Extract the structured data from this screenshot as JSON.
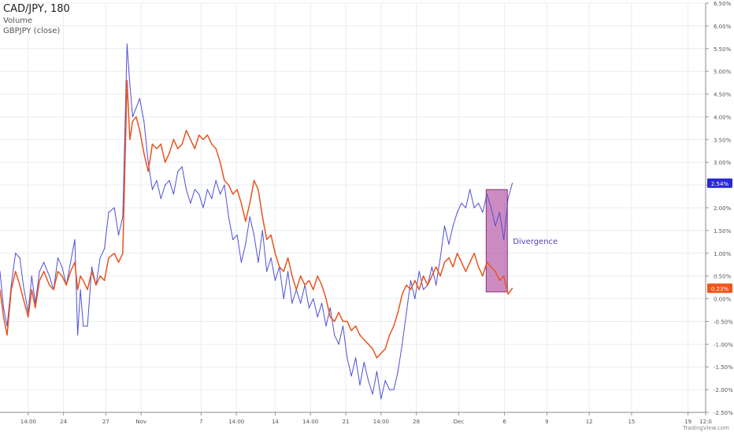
{
  "legend": {
    "title": "CAD/JPY, 180",
    "volume_label": "Volume",
    "compare_label": "GBPJPY (close)"
  },
  "watermark": "TradingView.com",
  "colors": {
    "cadjpy": "#4f4fd6",
    "gbpjpy": "#e8541e",
    "grid": "#e9ecf0",
    "highlight_fill": "#b24fa0",
    "highlight_stroke": "#8a2d7a",
    "axis_text": "#555555",
    "cadjpy_badge": "#2929d6",
    "gbpjpy_badge": "#f0561a"
  },
  "chart_data": {
    "type": "line",
    "y_unit": "%",
    "ylim": [
      -2.5,
      6.5
    ],
    "y_ticks": [
      "6.50%",
      "6.00%",
      "5.50%",
      "5.00%",
      "4.50%",
      "4.00%",
      "3.50%",
      "3.00%",
      "2.50%",
      "2.00%",
      "1.50%",
      "1.00%",
      "0.50%",
      "0.00%",
      "-0.50%",
      "-1.00%",
      "-1.50%",
      "-2.00%",
      "-2.50%"
    ],
    "x_tick_labels": [
      "14:00",
      "24",
      "27",
      "Nov",
      "7",
      "14:00",
      "14",
      "14:00",
      "21",
      "14:00",
      "28",
      "Dec",
      "6",
      "9",
      "12",
      "15",
      "19",
      "12:0"
    ],
    "x_range": [
      0,
      100
    ],
    "x_ticks": [
      4,
      9,
      15,
      20,
      28.5,
      33.5,
      39,
      44,
      49,
      54,
      59,
      65,
      71.5,
      77.5,
      83.5,
      89.5,
      97.5,
      100
    ],
    "grid": true,
    "legend_placement": "top-left",
    "series": [
      {
        "name": "GBPJPY (close)",
        "color": "#4f4fd6",
        "last_value_label": "2.54%",
        "points": [
          [
            0,
            0.6
          ],
          [
            0.5,
            -0.2
          ],
          [
            1,
            -0.6
          ],
          [
            1.6,
            0.3
          ],
          [
            2.2,
            1.0
          ],
          [
            2.8,
            0.9
          ],
          [
            3.3,
            0.3
          ],
          [
            4,
            -0.3
          ],
          [
            4.5,
            0.5
          ],
          [
            5,
            -0.1
          ],
          [
            5.6,
            0.6
          ],
          [
            6.2,
            0.8
          ],
          [
            7,
            0.5
          ],
          [
            7.6,
            0.2
          ],
          [
            8.2,
            0.9
          ],
          [
            8.8,
            0.7
          ],
          [
            9.4,
            0.3
          ],
          [
            10,
            0.8
          ],
          [
            10.6,
            1.3
          ],
          [
            11,
            -0.8
          ],
          [
            11.4,
            0.2
          ],
          [
            11.8,
            -0.6
          ],
          [
            12.4,
            -0.6
          ],
          [
            13,
            0.7
          ],
          [
            13.6,
            0.3
          ],
          [
            14.2,
            0.9
          ],
          [
            14.8,
            1.1
          ],
          [
            15.4,
            1.9
          ],
          [
            16.2,
            2.0
          ],
          [
            16.8,
            1.4
          ],
          [
            17.4,
            1.8
          ],
          [
            18,
            5.6
          ],
          [
            18.4,
            4.7
          ],
          [
            18.8,
            4.0
          ],
          [
            19.3,
            4.2
          ],
          [
            19.8,
            4.4
          ],
          [
            20.4,
            3.9
          ],
          [
            21,
            3.0
          ],
          [
            21.6,
            2.4
          ],
          [
            22.2,
            2.6
          ],
          [
            22.8,
            2.2
          ],
          [
            23.4,
            2.5
          ],
          [
            24.0,
            2.6
          ],
          [
            24.6,
            2.3
          ],
          [
            25.2,
            2.8
          ],
          [
            25.8,
            2.9
          ],
          [
            26.4,
            2.4
          ],
          [
            27,
            2.1
          ],
          [
            27.6,
            2.4
          ],
          [
            28.2,
            2.3
          ],
          [
            28.8,
            2.0
          ],
          [
            29.4,
            2.4
          ],
          [
            30,
            2.2
          ],
          [
            30.6,
            2.6
          ],
          [
            31.2,
            2.3
          ],
          [
            31.8,
            2.5
          ],
          [
            32.4,
            1.8
          ],
          [
            33,
            1.3
          ],
          [
            33.6,
            1.4
          ],
          [
            34.2,
            0.8
          ],
          [
            34.8,
            1.2
          ],
          [
            35.4,
            1.8
          ],
          [
            36,
            1.4
          ],
          [
            36.6,
            0.8
          ],
          [
            37.2,
            1.5
          ],
          [
            37.8,
            0.6
          ],
          [
            38.4,
            0.9
          ],
          [
            39,
            0.4
          ],
          [
            39.6,
            0.7
          ],
          [
            40.2,
            0.0
          ],
          [
            40.8,
            0.6
          ],
          [
            41.4,
            -0.1
          ],
          [
            42,
            0.2
          ],
          [
            42.6,
            -0.1
          ],
          [
            43.2,
            0.3
          ],
          [
            43.8,
            -0.2
          ],
          [
            44.4,
            0.0
          ],
          [
            45,
            -0.4
          ],
          [
            45.6,
            -0.1
          ],
          [
            46.2,
            -0.6
          ],
          [
            46.8,
            -0.2
          ],
          [
            47.4,
            -0.8
          ],
          [
            48,
            -1.0
          ],
          [
            48.6,
            -0.6
          ],
          [
            49.2,
            -1.3
          ],
          [
            49.8,
            -1.7
          ],
          [
            50.4,
            -1.3
          ],
          [
            51,
            -1.9
          ],
          [
            51.6,
            -1.4
          ],
          [
            52.2,
            -1.8
          ],
          [
            52.8,
            -2.1
          ],
          [
            53.4,
            -1.6
          ],
          [
            54,
            -2.2
          ],
          [
            54.6,
            -1.8
          ],
          [
            55.2,
            -2.0
          ],
          [
            55.8,
            -2.0
          ],
          [
            56.4,
            -1.6
          ],
          [
            57,
            -1.0
          ],
          [
            57.6,
            -0.3
          ],
          [
            58.2,
            0.4
          ],
          [
            58.8,
            0.0
          ],
          [
            59.4,
            0.6
          ],
          [
            60,
            0.2
          ],
          [
            60.6,
            0.3
          ],
          [
            61.2,
            0.7
          ],
          [
            61.8,
            0.3
          ],
          [
            62.4,
            0.9
          ],
          [
            63,
            1.6
          ],
          [
            63.6,
            1.2
          ],
          [
            64.2,
            1.6
          ],
          [
            64.8,
            1.9
          ],
          [
            65.4,
            2.1
          ],
          [
            66,
            2.0
          ],
          [
            66.6,
            2.4
          ],
          [
            67.2,
            2.0
          ],
          [
            67.8,
            2.1
          ],
          [
            68.4,
            1.9
          ],
          [
            69,
            2.3
          ],
          [
            69.6,
            2.0
          ],
          [
            70.2,
            1.6
          ],
          [
            70.8,
            1.9
          ],
          [
            71.4,
            1.3
          ],
          [
            72,
            2.2
          ],
          [
            72.6,
            2.54
          ]
        ]
      },
      {
        "name": "CAD/JPY",
        "color": "#e8541e",
        "last_value_label": "0.23%",
        "points": [
          [
            0,
            0.2
          ],
          [
            0.5,
            -0.4
          ],
          [
            1,
            -0.8
          ],
          [
            1.6,
            0.2
          ],
          [
            2.2,
            0.6
          ],
          [
            2.8,
            0.3
          ],
          [
            3.3,
            0.0
          ],
          [
            4,
            -0.4
          ],
          [
            4.5,
            0.2
          ],
          [
            5,
            -0.2
          ],
          [
            5.6,
            0.4
          ],
          [
            6.2,
            0.6
          ],
          [
            7,
            0.3
          ],
          [
            7.6,
            0.2
          ],
          [
            8.2,
            0.6
          ],
          [
            8.8,
            0.5
          ],
          [
            9.4,
            0.3
          ],
          [
            10,
            0.6
          ],
          [
            10.6,
            0.8
          ],
          [
            11,
            0.2
          ],
          [
            11.4,
            0.5
          ],
          [
            11.8,
            0.4
          ],
          [
            12.4,
            0.2
          ],
          [
            13,
            0.6
          ],
          [
            13.6,
            0.3
          ],
          [
            14.2,
            0.5
          ],
          [
            14.8,
            0.4
          ],
          [
            15.4,
            0.9
          ],
          [
            16.2,
            1.0
          ],
          [
            16.8,
            0.8
          ],
          [
            17.4,
            1.0
          ],
          [
            18,
            4.8
          ],
          [
            18.4,
            3.5
          ],
          [
            18.8,
            3.9
          ],
          [
            19.3,
            4.0
          ],
          [
            19.8,
            3.7
          ],
          [
            20.4,
            3.2
          ],
          [
            21,
            2.8
          ],
          [
            21.6,
            3.4
          ],
          [
            22.2,
            3.3
          ],
          [
            22.8,
            3.4
          ],
          [
            23.4,
            3.0
          ],
          [
            24.0,
            3.2
          ],
          [
            24.6,
            3.5
          ],
          [
            25.2,
            3.3
          ],
          [
            25.8,
            3.4
          ],
          [
            26.4,
            3.7
          ],
          [
            27,
            3.5
          ],
          [
            27.6,
            3.3
          ],
          [
            28.2,
            3.6
          ],
          [
            28.8,
            3.5
          ],
          [
            29.4,
            3.6
          ],
          [
            30,
            3.4
          ],
          [
            30.6,
            3.3
          ],
          [
            31.2,
            3.0
          ],
          [
            31.8,
            2.6
          ],
          [
            32.4,
            2.5
          ],
          [
            33,
            2.3
          ],
          [
            33.6,
            2.4
          ],
          [
            34.2,
            2.1
          ],
          [
            34.8,
            1.7
          ],
          [
            35.4,
            2.1
          ],
          [
            36,
            2.6
          ],
          [
            36.6,
            2.4
          ],
          [
            37.2,
            1.8
          ],
          [
            37.8,
            1.3
          ],
          [
            38.4,
            1.4
          ],
          [
            39,
            1.0
          ],
          [
            39.6,
            0.7
          ],
          [
            40.2,
            0.6
          ],
          [
            40.8,
            0.9
          ],
          [
            41.4,
            0.5
          ],
          [
            42,
            0.2
          ],
          [
            42.6,
            0.5
          ],
          [
            43.2,
            0.3
          ],
          [
            43.8,
            0.4
          ],
          [
            44.4,
            0.2
          ],
          [
            45,
            0.5
          ],
          [
            45.6,
            0.3
          ],
          [
            46.2,
            0.0
          ],
          [
            46.8,
            -0.4
          ],
          [
            47.4,
            -0.5
          ],
          [
            48,
            -0.3
          ],
          [
            48.6,
            -0.5
          ],
          [
            49.2,
            -0.5
          ],
          [
            49.8,
            -0.7
          ],
          [
            50.4,
            -0.6
          ],
          [
            51,
            -0.8
          ],
          [
            51.6,
            -0.9
          ],
          [
            52.2,
            -1.0
          ],
          [
            52.8,
            -1.1
          ],
          [
            53.4,
            -1.3
          ],
          [
            54,
            -1.2
          ],
          [
            54.6,
            -1.1
          ],
          [
            55.2,
            -0.8
          ],
          [
            55.8,
            -0.6
          ],
          [
            56.4,
            -0.3
          ],
          [
            57,
            0.1
          ],
          [
            57.6,
            0.3
          ],
          [
            58.2,
            0.2
          ],
          [
            58.8,
            0.4
          ],
          [
            59.4,
            0.2
          ],
          [
            60,
            0.5
          ],
          [
            60.6,
            0.3
          ],
          [
            61.2,
            0.5
          ],
          [
            61.8,
            0.7
          ],
          [
            62.4,
            0.5
          ],
          [
            63,
            0.8
          ],
          [
            63.6,
            0.9
          ],
          [
            64.2,
            0.7
          ],
          [
            64.8,
            1.0
          ],
          [
            65.4,
            0.8
          ],
          [
            66,
            0.6
          ],
          [
            66.6,
            0.8
          ],
          [
            67.2,
            1.0
          ],
          [
            67.8,
            0.7
          ],
          [
            68.4,
            0.5
          ],
          [
            69,
            0.8
          ],
          [
            69.6,
            0.7
          ],
          [
            70.2,
            0.6
          ],
          [
            70.8,
            0.4
          ],
          [
            71.4,
            0.5
          ],
          [
            72,
            0.1
          ],
          [
            72.6,
            0.23
          ]
        ]
      }
    ],
    "annotation": {
      "label": "Divergence",
      "x_start": 68.9,
      "x_end": 71.9,
      "y_top": 2.4,
      "y_bottom": 0.15
    }
  }
}
